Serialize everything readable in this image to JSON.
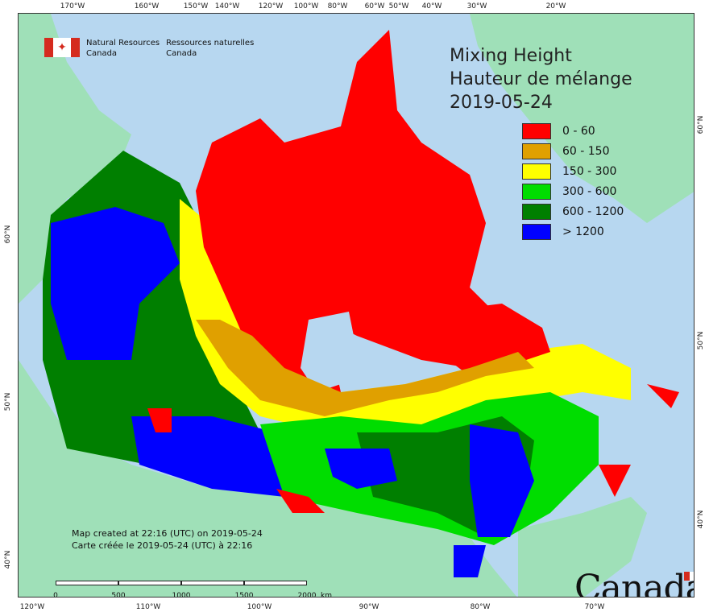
{
  "agency": {
    "en_line1": "Natural Resources",
    "en_line2": "Canada",
    "fr_line1": "Ressources naturelles",
    "fr_line2": "Canada"
  },
  "title": {
    "line1": "Mixing Height",
    "line2": "Hauteur de mélange",
    "date": "2019-05-24"
  },
  "legend": [
    {
      "label": "0 - 60",
      "color": "#ff0000"
    },
    {
      "label": "60 - 150",
      "color": "#e0a000"
    },
    {
      "label": "150 - 300",
      "color": "#ffff00"
    },
    {
      "label": "300 - 600",
      "color": "#00dd00"
    },
    {
      "label": "600 - 1200",
      "color": "#007f00"
    },
    {
      "label": "> 1200",
      "color": "#0000ff"
    }
  ],
  "credit": {
    "en": "Map created at 22:16 (UTC) on 2019-05-24",
    "fr": "Carte créée le 2019-05-24 (UTC) à 22:16"
  },
  "scale": {
    "labels": [
      "0",
      "500",
      "1000",
      "1500",
      "2000"
    ],
    "unit": "km"
  },
  "wordmark": "Canada",
  "ticks": {
    "top": [
      "170°W",
      "160°W",
      "150°W",
      "140°W",
      "120°W",
      "100°W",
      "80°W",
      "60°W",
      "50°W",
      "40°W",
      "30°W",
      "20°W"
    ],
    "bottom": [
      "120°W",
      "110°W",
      "100°W",
      "90°W",
      "80°W",
      "70°W"
    ],
    "left": [
      "60°N",
      "50°N",
      "40°N"
    ],
    "right": [
      "60°N",
      "50°N",
      "40°N"
    ]
  },
  "colors": {
    "ocean": "#b7d7f0",
    "foreign_land": "#9fe0b8"
  }
}
